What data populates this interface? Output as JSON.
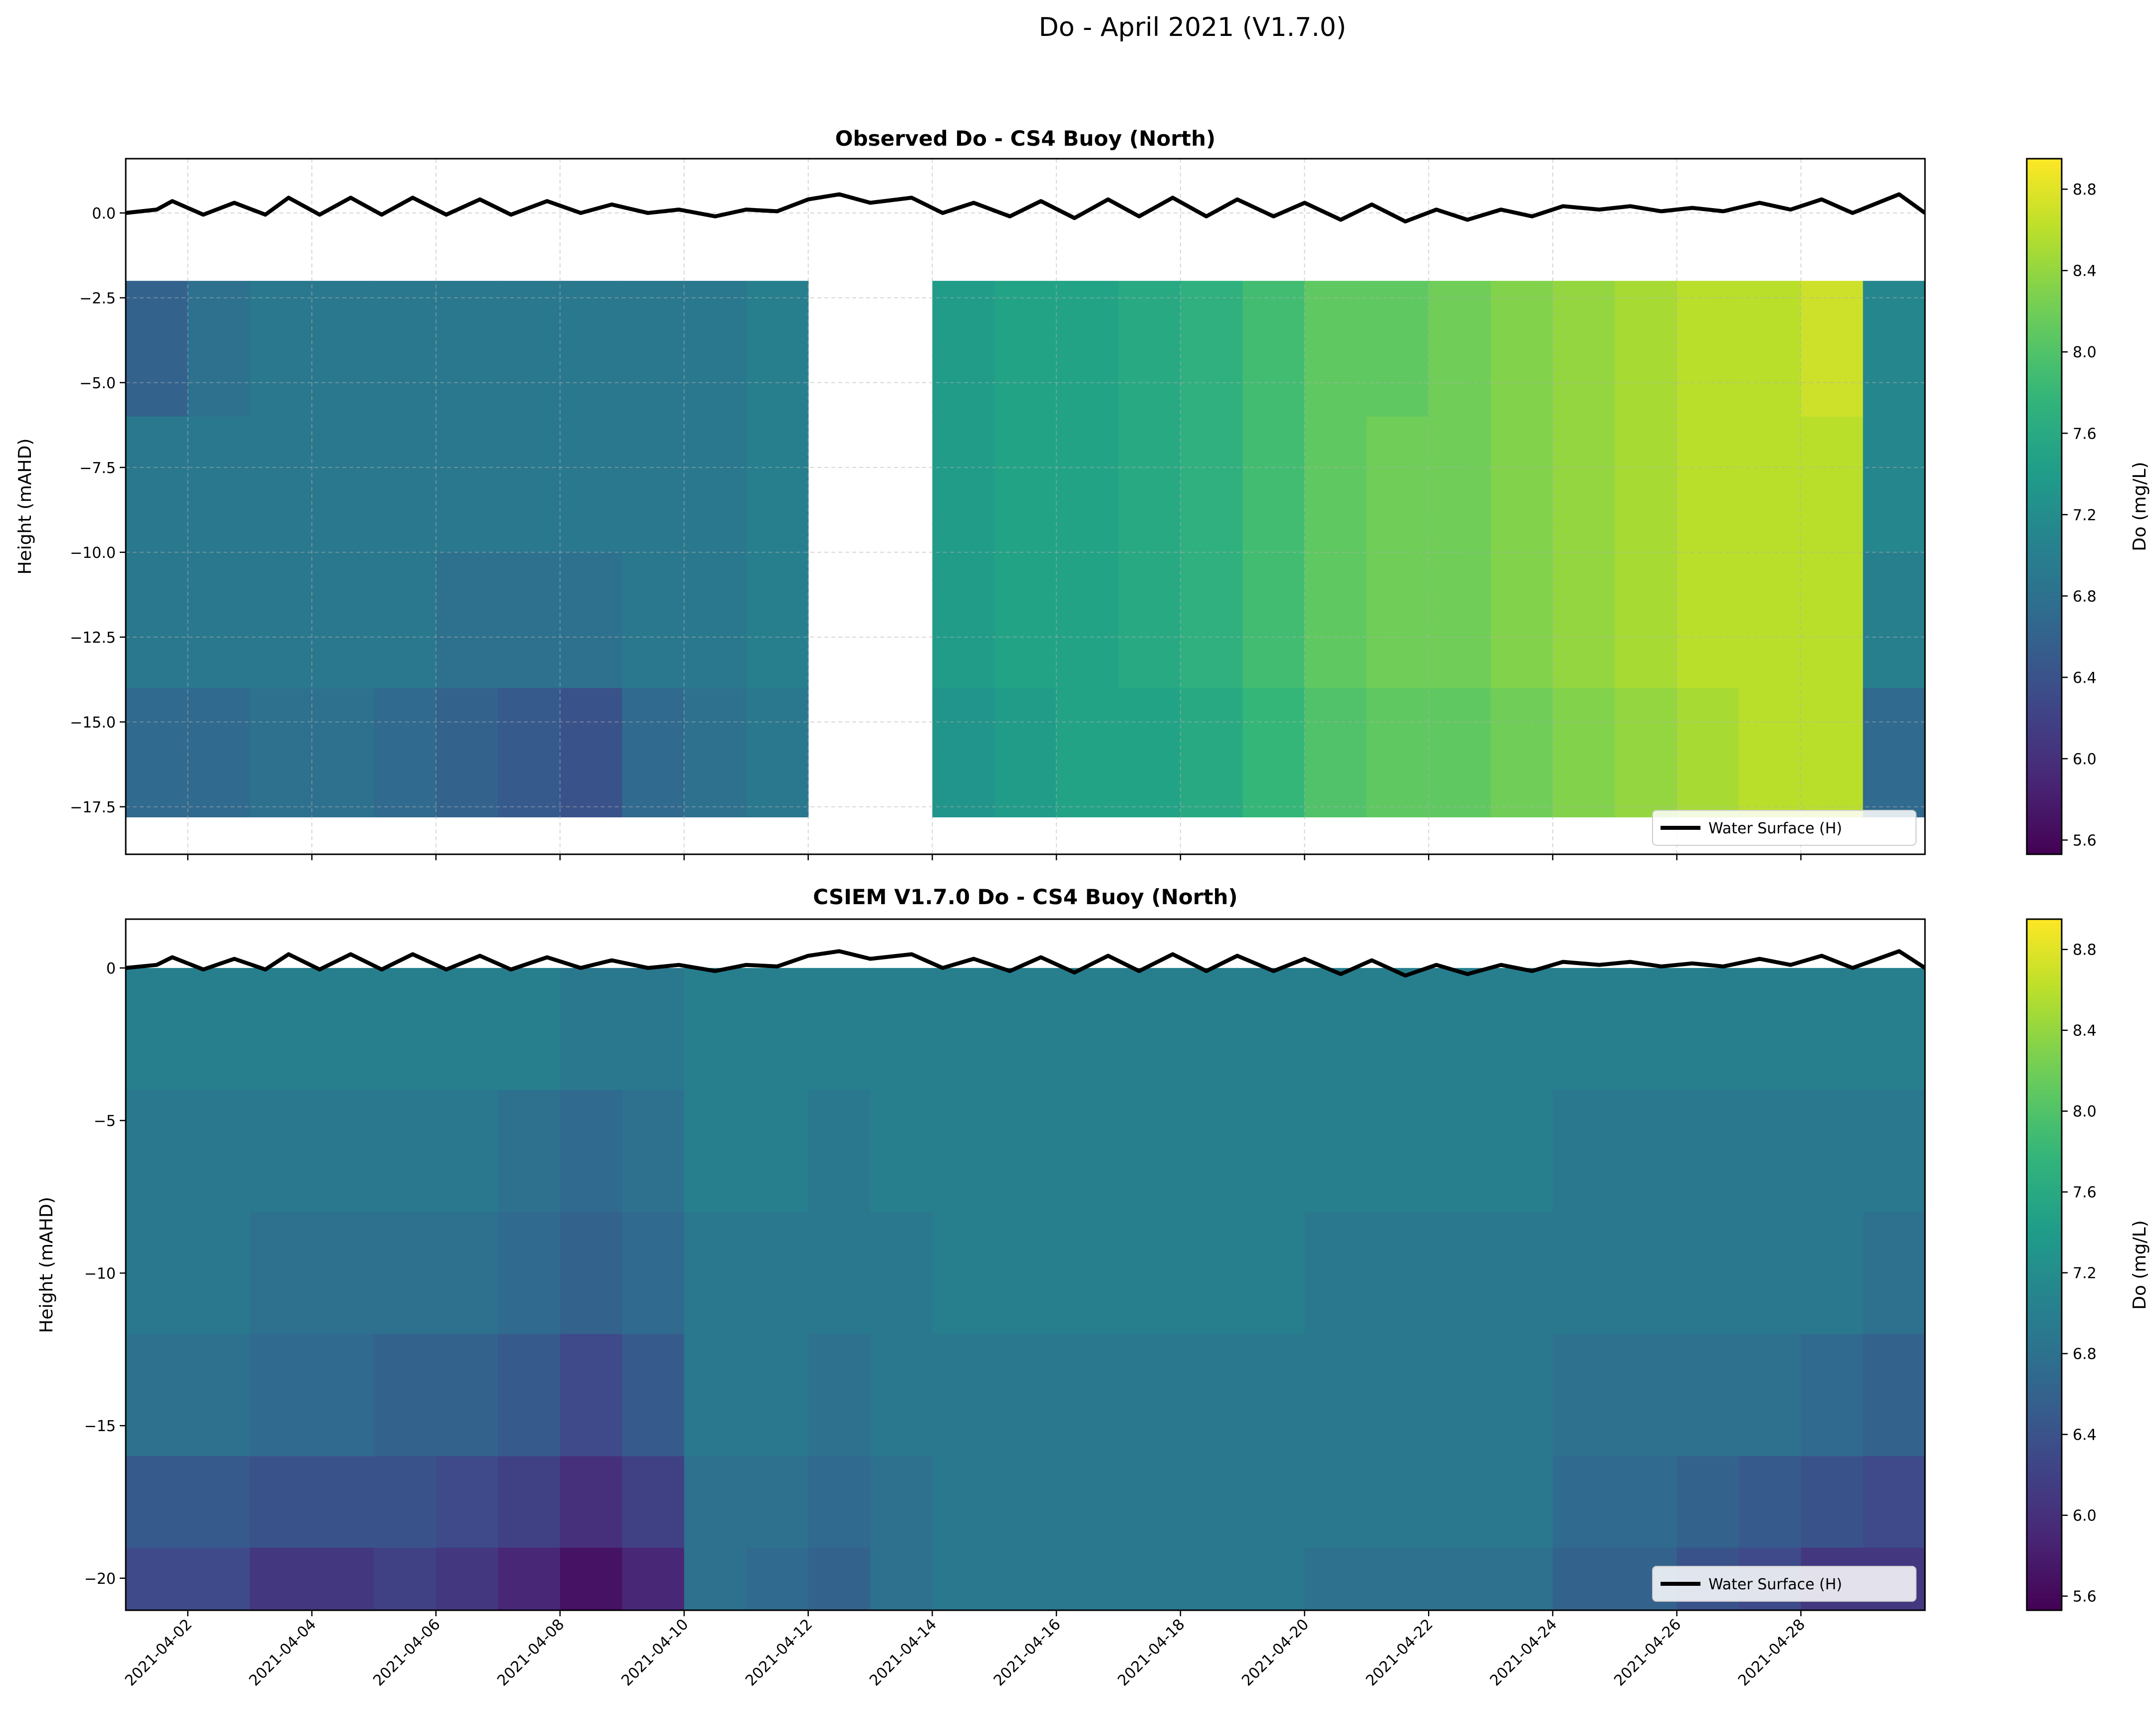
{
  "suptitle": "Do - April 2021 (V1.7.0)",
  "chart_data": [
    {
      "type": "heatmap",
      "title": "Observed Do - CS4 Buoy (North)",
      "xlabel": "",
      "ylabel": "Height (mAHD)",
      "xlim": [
        "2021-04-01",
        "2021-04-30"
      ],
      "ylim": [
        -18.9,
        1.6
      ],
      "grid": true,
      "yticks": [
        0.0,
        -2.5,
        -5.0,
        -7.5,
        -10.0,
        -12.5,
        -15.0,
        -17.5
      ],
      "ytick_labels": [
        "0.0",
        "−2.5",
        "−5.0",
        "−7.5",
        "−10.0",
        "−12.5",
        "−15.0",
        "−17.5"
      ],
      "colorbar": {
        "label": "Do (mg/L)",
        "colormap": "viridis",
        "clim": [
          5.53,
          8.95
        ],
        "ticks": [
          "8.8",
          "8.4",
          "8.0",
          "7.6",
          "7.2",
          "6.8",
          "6.4",
          "6.0",
          "5.6"
        ]
      },
      "legend": {
        "label": "Water Surface (H)",
        "placement": "lower right",
        "color": "#000000"
      },
      "depth_bins": [
        [
          -2.0,
          -6.0
        ],
        [
          -6.0,
          -10.0
        ],
        [
          -10.0,
          -14.0
        ],
        [
          -14.0,
          -17.8
        ]
      ],
      "days": [
        "2021-04-01",
        "2021-04-02",
        "2021-04-03",
        "2021-04-04",
        "2021-04-05",
        "2021-04-06",
        "2021-04-07",
        "2021-04-08",
        "2021-04-09",
        "2021-04-10",
        "2021-04-11",
        "2021-04-12",
        "2021-04-13",
        "2021-04-14",
        "2021-04-15",
        "2021-04-16",
        "2021-04-17",
        "2021-04-18",
        "2021-04-19",
        "2021-04-20",
        "2021-04-21",
        "2021-04-22",
        "2021-04-23",
        "2021-04-24",
        "2021-04-25",
        "2021-04-26",
        "2021-04-27",
        "2021-04-28",
        "2021-04-29"
      ],
      "values": [
        [
          6.6,
          6.9,
          6.9,
          6.7
        ],
        [
          6.8,
          6.9,
          6.9,
          6.7
        ],
        [
          6.9,
          6.9,
          6.9,
          6.8
        ],
        [
          6.9,
          6.9,
          6.9,
          6.8
        ],
        [
          6.9,
          6.9,
          6.9,
          6.7
        ],
        [
          6.9,
          6.9,
          6.8,
          6.6
        ],
        [
          6.9,
          6.9,
          6.8,
          6.5
        ],
        [
          6.9,
          6.9,
          6.8,
          6.4
        ],
        [
          6.9,
          6.9,
          6.9,
          6.7
        ],
        [
          6.9,
          6.9,
          6.9,
          6.8
        ],
        [
          7.0,
          7.0,
          7.0,
          6.9
        ],
        null,
        null,
        [
          7.4,
          7.4,
          7.4,
          7.3
        ],
        [
          7.5,
          7.5,
          7.5,
          7.4
        ],
        [
          7.5,
          7.5,
          7.5,
          7.5
        ],
        [
          7.6,
          7.6,
          7.6,
          7.5
        ],
        [
          7.7,
          7.7,
          7.7,
          7.6
        ],
        [
          7.9,
          7.9,
          7.9,
          7.8
        ],
        [
          8.1,
          8.1,
          8.1,
          8.0
        ],
        [
          8.1,
          8.2,
          8.2,
          8.1
        ],
        [
          8.2,
          8.2,
          8.2,
          8.1
        ],
        [
          8.3,
          8.3,
          8.3,
          8.2
        ],
        [
          8.4,
          8.4,
          8.4,
          8.3
        ],
        [
          8.5,
          8.5,
          8.5,
          8.4
        ],
        [
          8.6,
          8.6,
          8.6,
          8.5
        ],
        [
          8.6,
          8.6,
          8.6,
          8.6
        ],
        [
          8.7,
          8.6,
          8.6,
          8.6
        ],
        [
          7.1,
          7.1,
          7.0,
          6.7
        ]
      ]
    },
    {
      "type": "heatmap",
      "title": "CSIEM V1.7.0 Do - CS4 Buoy (North)",
      "xlabel": "",
      "ylabel": "Height (mAHD)",
      "xlim": [
        "2021-04-01",
        "2021-04-30"
      ],
      "ylim": [
        -21.05,
        1.6
      ],
      "grid": false,
      "yticks": [
        0,
        -5,
        -10,
        -15,
        -20
      ],
      "ytick_labels": [
        "0",
        "−5",
        "−10",
        "−15",
        "−20"
      ],
      "xticks": [
        "2021-04-02",
        "2021-04-04",
        "2021-04-06",
        "2021-04-08",
        "2021-04-10",
        "2021-04-12",
        "2021-04-14",
        "2021-04-16",
        "2021-04-18",
        "2021-04-20",
        "2021-04-22",
        "2021-04-24",
        "2021-04-26",
        "2021-04-28"
      ],
      "colorbar": {
        "label": "Do (mg/L)",
        "colormap": "viridis",
        "clim": [
          5.53,
          8.95
        ],
        "ticks": [
          "8.8",
          "8.4",
          "8.0",
          "7.6",
          "7.2",
          "6.8",
          "6.4",
          "6.0",
          "5.6"
        ]
      },
      "legend": {
        "label": "Water Surface (H)",
        "placement": "lower right",
        "color": "#000000"
      },
      "depth_bins": [
        [
          0,
          -4
        ],
        [
          -4,
          -8
        ],
        [
          -8,
          -12
        ],
        [
          -12,
          -16
        ],
        [
          -16,
          -19
        ],
        [
          -19,
          -22
        ]
      ],
      "days": [
        "2021-04-01",
        "2021-04-02",
        "2021-04-03",
        "2021-04-04",
        "2021-04-05",
        "2021-04-06",
        "2021-04-07",
        "2021-04-08",
        "2021-04-09",
        "2021-04-10",
        "2021-04-11",
        "2021-04-12",
        "2021-04-13",
        "2021-04-14",
        "2021-04-15",
        "2021-04-16",
        "2021-04-17",
        "2021-04-18",
        "2021-04-19",
        "2021-04-20",
        "2021-04-21",
        "2021-04-22",
        "2021-04-23",
        "2021-04-24",
        "2021-04-25",
        "2021-04-26",
        "2021-04-27",
        "2021-04-28",
        "2021-04-29"
      ],
      "values": [
        [
          7.0,
          6.9,
          6.9,
          6.8,
          6.5,
          6.3
        ],
        [
          7.0,
          6.9,
          6.9,
          6.8,
          6.5,
          6.3
        ],
        [
          7.0,
          6.9,
          6.8,
          6.7,
          6.4,
          6.1
        ],
        [
          7.0,
          6.9,
          6.8,
          6.7,
          6.4,
          6.1
        ],
        [
          7.0,
          6.9,
          6.8,
          6.6,
          6.4,
          6.2
        ],
        [
          7.0,
          6.9,
          6.8,
          6.6,
          6.3,
          6.1
        ],
        [
          7.0,
          6.8,
          6.7,
          6.5,
          6.2,
          5.9
        ],
        [
          6.9,
          6.7,
          6.6,
          6.3,
          6.0,
          5.7
        ],
        [
          6.9,
          6.8,
          6.7,
          6.5,
          6.2,
          5.9
        ],
        [
          7.0,
          7.0,
          6.9,
          6.9,
          6.8,
          6.8
        ],
        [
          7.0,
          7.0,
          6.9,
          6.9,
          6.8,
          6.7
        ],
        [
          7.0,
          6.9,
          6.9,
          6.8,
          6.7,
          6.6
        ],
        [
          7.0,
          7.0,
          6.9,
          6.9,
          6.8,
          6.8
        ],
        [
          7.0,
          7.0,
          7.0,
          6.9,
          6.9,
          6.9
        ],
        [
          7.0,
          7.0,
          7.0,
          6.9,
          6.9,
          6.9
        ],
        [
          7.0,
          7.0,
          7.0,
          6.9,
          6.9,
          6.9
        ],
        [
          7.0,
          7.0,
          7.0,
          6.9,
          6.9,
          6.9
        ],
        [
          7.0,
          7.0,
          7.0,
          6.9,
          6.9,
          6.9
        ],
        [
          7.0,
          7.0,
          7.0,
          6.9,
          6.9,
          6.9
        ],
        [
          7.0,
          7.0,
          6.9,
          6.9,
          6.9,
          6.8
        ],
        [
          7.0,
          7.0,
          6.9,
          6.9,
          6.9,
          6.8
        ],
        [
          7.0,
          7.0,
          6.9,
          6.9,
          6.9,
          6.8
        ],
        [
          7.0,
          7.0,
          6.9,
          6.9,
          6.9,
          6.8
        ],
        [
          7.0,
          6.9,
          6.9,
          6.8,
          6.7,
          6.6
        ],
        [
          7.0,
          6.9,
          6.9,
          6.8,
          6.7,
          6.6
        ],
        [
          7.0,
          6.9,
          6.9,
          6.8,
          6.6,
          6.4
        ],
        [
          7.0,
          6.9,
          6.9,
          6.8,
          6.5,
          6.3
        ],
        [
          7.0,
          6.9,
          6.9,
          6.7,
          6.4,
          6.1
        ],
        [
          7.0,
          6.9,
          6.8,
          6.6,
          6.3,
          6.1
        ]
      ]
    }
  ],
  "water_surface": [
    [
      "2021-04-01T00:00",
      0.0
    ],
    [
      "2021-04-01T12:00",
      0.1
    ],
    [
      "2021-04-01T18:00",
      0.35
    ],
    [
      "2021-04-02T06:00",
      -0.05
    ],
    [
      "2021-04-02T18:00",
      0.3
    ],
    [
      "2021-04-03T06:00",
      -0.05
    ],
    [
      "2021-04-03T15:00",
      0.45
    ],
    [
      "2021-04-04T03:00",
      -0.05
    ],
    [
      "2021-04-04T15:00",
      0.45
    ],
    [
      "2021-04-05T03:00",
      -0.05
    ],
    [
      "2021-04-05T15:00",
      0.45
    ],
    [
      "2021-04-06T04:00",
      -0.05
    ],
    [
      "2021-04-06T17:00",
      0.4
    ],
    [
      "2021-04-07T05:00",
      -0.05
    ],
    [
      "2021-04-07T19:00",
      0.35
    ],
    [
      "2021-04-08T08:00",
      0.0
    ],
    [
      "2021-04-08T20:00",
      0.25
    ],
    [
      "2021-04-09T10:00",
      0.0
    ],
    [
      "2021-04-09T22:00",
      0.1
    ],
    [
      "2021-04-10T12:00",
      -0.1
    ],
    [
      "2021-04-11T00:00",
      0.1
    ],
    [
      "2021-04-11T12:00",
      0.05
    ],
    [
      "2021-04-12T00:00",
      0.4
    ],
    [
      "2021-04-12T12:00",
      0.55
    ],
    [
      "2021-04-13T00:00",
      0.3
    ],
    [
      "2021-04-13T16:00",
      0.45
    ],
    [
      "2021-04-14T04:00",
      0.0
    ],
    [
      "2021-04-14T16:00",
      0.3
    ],
    [
      "2021-04-15T06:00",
      -0.1
    ],
    [
      "2021-04-15T18:00",
      0.35
    ],
    [
      "2021-04-16T07:00",
      -0.15
    ],
    [
      "2021-04-16T20:00",
      0.4
    ],
    [
      "2021-04-17T08:00",
      -0.1
    ],
    [
      "2021-04-17T21:00",
      0.45
    ],
    [
      "2021-04-18T10:00",
      -0.1
    ],
    [
      "2021-04-18T22:00",
      0.4
    ],
    [
      "2021-04-19T12:00",
      -0.1
    ],
    [
      "2021-04-20T00:00",
      0.3
    ],
    [
      "2021-04-20T14:00",
      -0.2
    ],
    [
      "2021-04-21T02:00",
      0.25
    ],
    [
      "2021-04-21T15:00",
      -0.25
    ],
    [
      "2021-04-22T03:00",
      0.1
    ],
    [
      "2021-04-22T15:00",
      -0.2
    ],
    [
      "2021-04-23T04:00",
      0.1
    ],
    [
      "2021-04-23T16:00",
      -0.1
    ],
    [
      "2021-04-24T04:00",
      0.2
    ],
    [
      "2021-04-24T18:00",
      0.1
    ],
    [
      "2021-04-25T06:00",
      0.2
    ],
    [
      "2021-04-25T18:00",
      0.05
    ],
    [
      "2021-04-26T06:00",
      0.15
    ],
    [
      "2021-04-26T18:00",
      0.05
    ],
    [
      "2021-04-27T08:00",
      0.3
    ],
    [
      "2021-04-27T20:00",
      0.1
    ],
    [
      "2021-04-28T08:00",
      0.4
    ],
    [
      "2021-04-28T20:00",
      0.0
    ],
    [
      "2021-04-29T14:00",
      0.55
    ],
    [
      "2021-04-30T00:00",
      0.0
    ]
  ]
}
